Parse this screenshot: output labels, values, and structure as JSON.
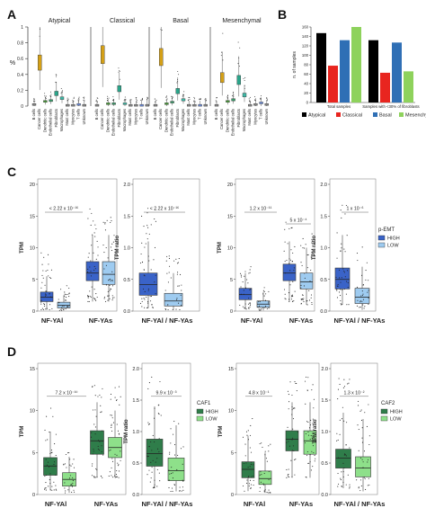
{
  "panels": {
    "A": "A",
    "B": "B",
    "C": "C",
    "D": "D"
  },
  "panelA": {
    "subtypes": [
      "Atypical",
      "Classical",
      "Basal",
      "Mesenchymal"
    ],
    "ylabel": "%",
    "yticks": [
      "0",
      "0.2",
      "0.4",
      "0.6",
      "0.8",
      "1"
    ],
    "celltypes": [
      "B cells",
      "Cancer cells",
      "Dendritic cells",
      "Endothelial cells",
      "Fibroblasts",
      "Macrophages",
      "Mast cells",
      "Myocytes",
      "T cells",
      "Unknown"
    ]
  },
  "chart_data": [
    {
      "type": "bar",
      "panel": "B",
      "ylabel": "n. of samples",
      "categories": [
        "Total samples",
        "Samples with <30% of fibroblasts"
      ],
      "series": [
        {
          "name": "Atypical",
          "color": "#000000",
          "values": [
            147,
            132
          ]
        },
        {
          "name": "Classical",
          "color": "#e8251f",
          "values": [
            78,
            63
          ]
        },
        {
          "name": "Basal",
          "color": "#2f6fb5",
          "values": [
            132,
            127
          ]
        },
        {
          "name": "Mesenchymal",
          "color": "#8ed25c",
          "values": [
            160,
            66
          ]
        }
      ],
      "ylim": [
        0,
        160
      ],
      "yticks": [
        0,
        20,
        40,
        60,
        80,
        100,
        120,
        140,
        160
      ],
      "legend": "bottom"
    }
  ],
  "panelC": {
    "xlabels_tpm": [
      "NF-YAl",
      "NF-YAs"
    ],
    "xlabel_ratio": "NF-YAl / NF-YAs",
    "ylabel_tpm": "TPM",
    "ylabel_ratio": "TPM ratio",
    "legend_title": "p-EMT",
    "legend_items": [
      "HIGH",
      "LOW"
    ],
    "colors": {
      "high": "#3a63c8",
      "low": "#9ecbf0"
    },
    "pvals": [
      "< 2.22 x 10⁻¹⁶",
      "< 2.22 x 10⁻¹⁶",
      "1.2 x 10⁻¹¹",
      "5 x 10⁻⁴",
      "1 x 10⁻⁶"
    ],
    "yticks_tpm_left": [
      "0",
      "5",
      "10",
      "15",
      "20"
    ],
    "yticks_ratio_left": [
      "0.0",
      "0.5",
      "1.0",
      "1.5",
      "2.0"
    ],
    "yticks_tpm_right": [
      "0",
      "5",
      "10",
      "15",
      "20"
    ],
    "yticks_ratio_right": [
      "0.0",
      "0.5",
      "1.0",
      "1.5",
      "2.0"
    ]
  },
  "panelD": {
    "xlabels_tpm": [
      "NF-YAl",
      "NF-YAs"
    ],
    "xlabel_ratio": "NF-YAl / NF-YAs",
    "ylabel_tpm": "TPM",
    "ylabel_ratio": "TPM ratio",
    "legend_title_1": "CAF1",
    "legend_title_2": "CAF2",
    "legend_items": [
      "HIGH",
      "LOW"
    ],
    "colors": {
      "high": "#2f7d4a",
      "low": "#8ee08a"
    },
    "pvals": [
      "7.2 x 10⁻¹⁰",
      "9.9 x 10⁻³",
      "4.8 x 10⁻¹",
      "1.3 x 10⁻²"
    ],
    "yticks_tpm": [
      "0",
      "5",
      "10",
      "15"
    ],
    "yticks_ratio": [
      "0.0",
      "0.5",
      "1.0",
      "1.5",
      "2.0"
    ]
  }
}
